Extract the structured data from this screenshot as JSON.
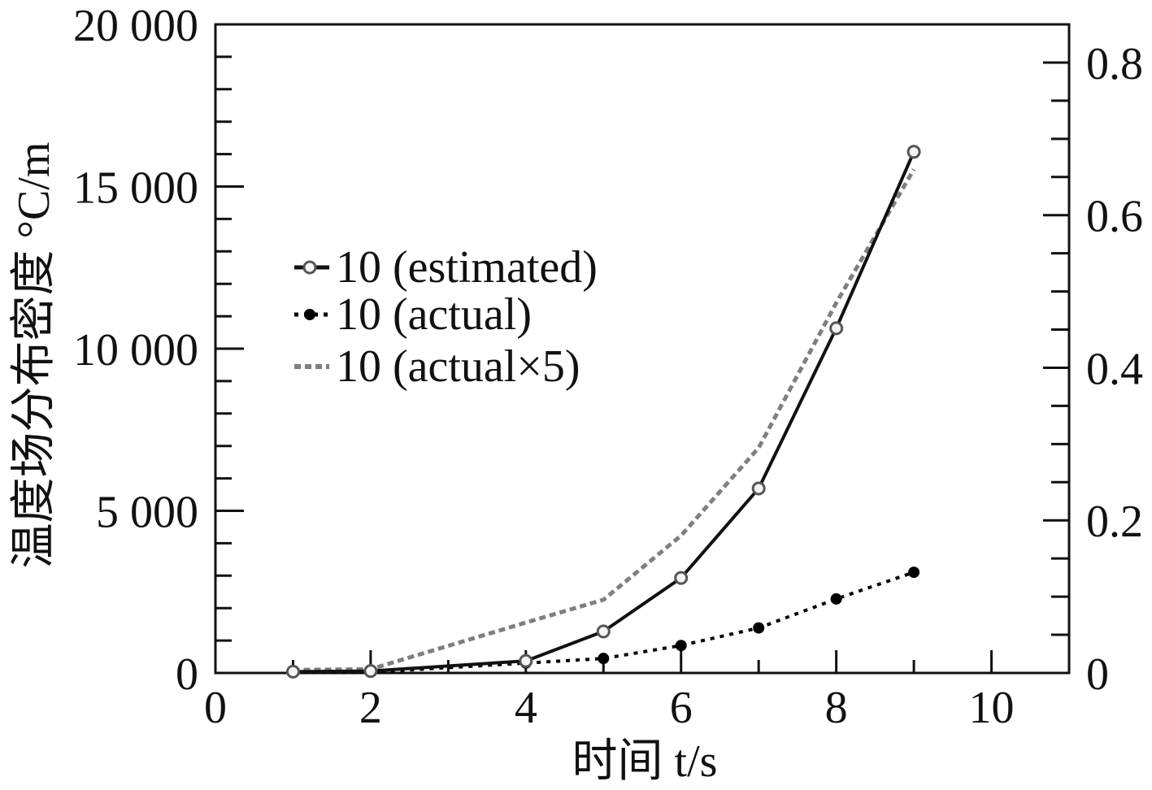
{
  "chart_data": {
    "type": "line",
    "xlabel": "时间 t/s",
    "ylabel": "温度场分布密度 °C/m",
    "xlim": [
      0,
      11
    ],
    "ylim": [
      0,
      20000
    ],
    "y2lim": [
      0,
      0.85
    ],
    "x_ticks": [
      0,
      2,
      4,
      6,
      8,
      10
    ],
    "x_tick_labels": [
      "0",
      "2",
      "4",
      "6",
      "8",
      "10"
    ],
    "y_ticks": [
      0,
      5000,
      10000,
      15000,
      20000
    ],
    "y_tick_labels": [
      "0",
      "5 000",
      "10 000",
      "15 000",
      "20 000"
    ],
    "y2_ticks": [
      0,
      0.2,
      0.4,
      0.6,
      0.8
    ],
    "y2_tick_labels": [
      "0",
      "0.2",
      "0.4",
      "0.6",
      "0.8"
    ],
    "grid": false,
    "legend_position": "center-left",
    "x": [
      1,
      2,
      4,
      5,
      6,
      7,
      8,
      9
    ],
    "series": [
      {
        "name": "10 (estimated)",
        "axis": "left",
        "line": "solid",
        "marker": "open-circle",
        "color": "#111111",
        "marker_color": "#555555",
        "values": [
          40,
          60,
          370,
          1280,
          2930,
          5690,
          10630,
          16070
        ]
      },
      {
        "name": "10 (actual)",
        "axis": "right",
        "line": "dotted",
        "marker": "filled-circle",
        "color": "#000000",
        "values": [
          0.001,
          0.001,
          0.013,
          0.019,
          0.036,
          0.059,
          0.097,
          0.132
        ]
      },
      {
        "name": "10 (actual×5)",
        "axis": "right",
        "line": "dotted",
        "marker": "none",
        "color": "#7f7f7f",
        "values": [
          0.004,
          0.005,
          0.066,
          0.096,
          0.18,
          0.295,
          0.485,
          0.66
        ]
      }
    ]
  }
}
